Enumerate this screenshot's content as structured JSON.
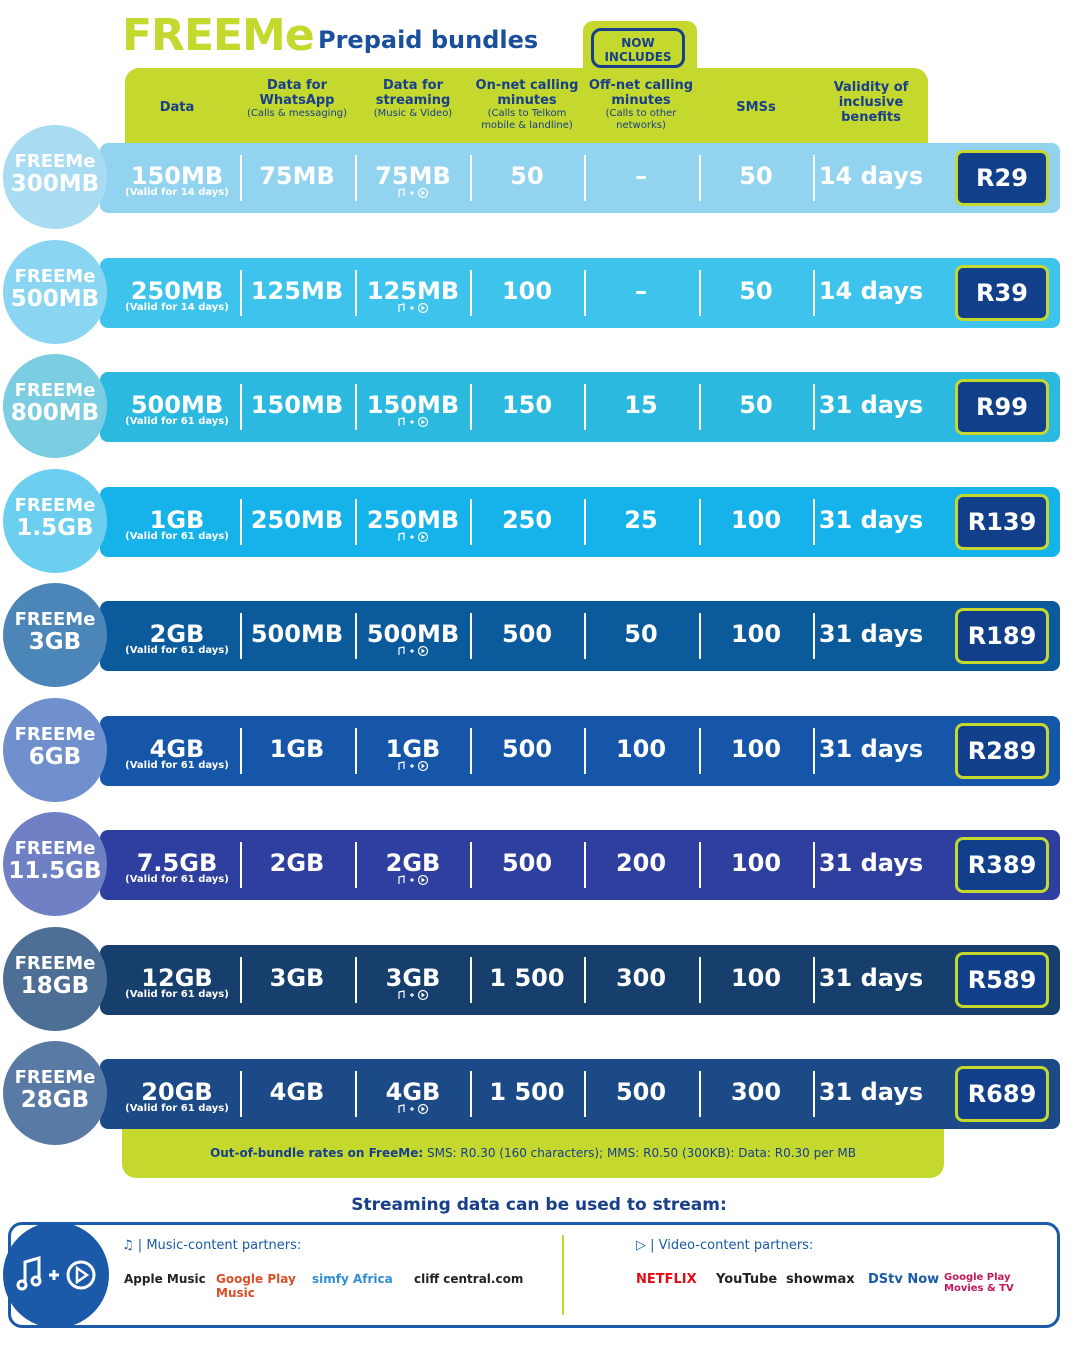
{
  "header": {
    "brand": "FREEMe",
    "title": "Prepaid bundles",
    "badge": "NOW INCLUDES"
  },
  "columns": [
    {
      "title": "Data"
    },
    {
      "title": "Data for WhatsApp",
      "note": "(Calls & messaging)"
    },
    {
      "title": "Data for streaming",
      "note": "(Music & Video)"
    },
    {
      "title": "On-net calling minutes",
      "note": "(Calls to Telkom mobile & landline)"
    },
    {
      "title": "Off-net calling minutes",
      "note": "(Calls to other networks)"
    },
    {
      "title": "SMSs"
    },
    {
      "title": "Validity of inclusive benefits"
    }
  ],
  "rows": [
    {
      "plan": "300MB",
      "cells": [
        "150MB",
        "75MB",
        "75MB",
        "50",
        "–",
        "50",
        "14 days"
      ],
      "data_note": "(Valid for 14 days)",
      "price": "R29"
    },
    {
      "plan": "500MB",
      "cells": [
        "250MB",
        "125MB",
        "125MB",
        "100",
        "–",
        "50",
        "14 days"
      ],
      "data_note": "(Valid for 14 days)",
      "price": "R39"
    },
    {
      "plan": "800MB",
      "cells": [
        "500MB",
        "150MB",
        "150MB",
        "150",
        "15",
        "50",
        "31 days"
      ],
      "data_note": "(Valid for 61 days)",
      "price": "R99"
    },
    {
      "plan": "1.5GB",
      "cells": [
        "1GB",
        "250MB",
        "250MB",
        "250",
        "25",
        "100",
        "31 days"
      ],
      "data_note": "(Valid for 61 days)",
      "price": "R139"
    },
    {
      "plan": "3GB",
      "cells": [
        "2GB",
        "500MB",
        "500MB",
        "500",
        "50",
        "100",
        "31 days"
      ],
      "data_note": "(Valid for 61 days)",
      "price": "R189"
    },
    {
      "plan": "6GB",
      "cells": [
        "4GB",
        "1GB",
        "1GB",
        "500",
        "100",
        "100",
        "31 days"
      ],
      "data_note": "(Valid for 61 days)",
      "price": "R289"
    },
    {
      "plan": "11.5GB",
      "cells": [
        "7.5GB",
        "2GB",
        "2GB",
        "500",
        "200",
        "100",
        "31 days"
      ],
      "data_note": "(Valid for 61 days)",
      "price": "R389"
    },
    {
      "plan": "18GB",
      "cells": [
        "12GB",
        "3GB",
        "3GB",
        "1 500",
        "300",
        "100",
        "31 days"
      ],
      "data_note": "(Valid for 61 days)",
      "price": "R589"
    },
    {
      "plan": "28GB",
      "cells": [
        "20GB",
        "4GB",
        "4GB",
        "1 500",
        "500",
        "300",
        "31 days"
      ],
      "data_note": "(Valid for 61 days)",
      "price": "R689"
    }
  ],
  "footer_note": {
    "label": "Out-of-bundle rates on FreeMe:",
    "text": "SMS: R0.30 (160 characters); MMS: R0.50 (300KB): Data: R0.30 per MB"
  },
  "streaming": {
    "title": "Streaming data can be used to stream:",
    "music": {
      "label": "Music-content partners:",
      "partners": [
        "Apple Music",
        "Google Play Music",
        "simfy Africa",
        "cliff central.com"
      ]
    },
    "video": {
      "label": "Video-content partners:",
      "partners": [
        "NETFLIX",
        "YouTube",
        "showmax",
        "DStv Now",
        "Google Play Movies & TV"
      ]
    }
  }
}
